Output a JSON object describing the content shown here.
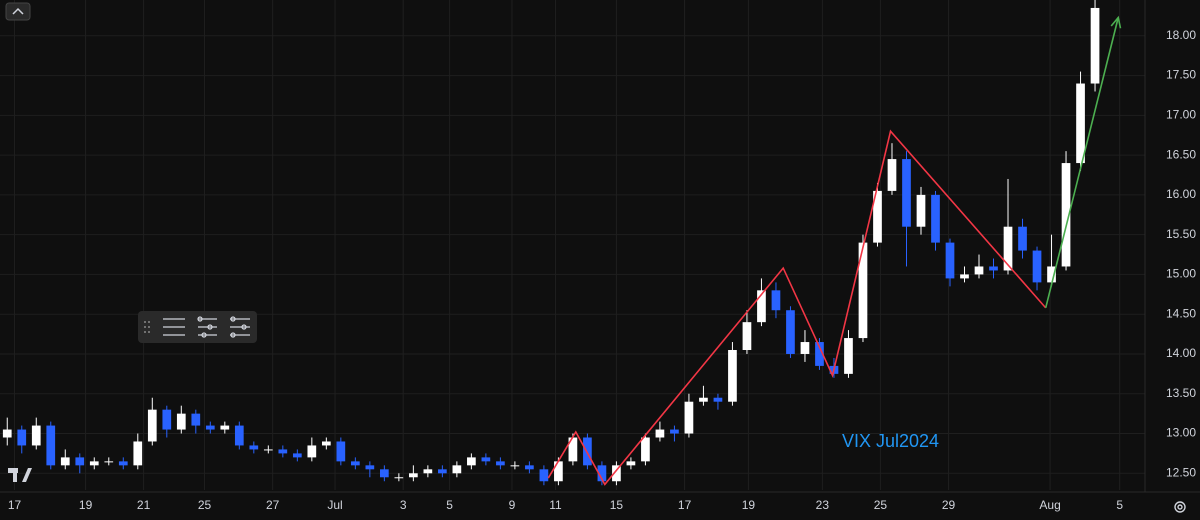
{
  "chart_data": {
    "type": "candlestick",
    "annotation": "VIX Jul2024",
    "up_color": "#ffffff",
    "down_color": "#2962ff",
    "grid": true,
    "xlim": [
      -0.5,
      78.1
    ],
    "xticks": [
      {
        "value": 0.5,
        "label": "17"
      },
      {
        "value": 5.4,
        "label": "19"
      },
      {
        "value": 9.4,
        "label": "21"
      },
      {
        "value": 13.6,
        "label": "25"
      },
      {
        "value": 18.3,
        "label": "27"
      },
      {
        "value": 22.6,
        "label": "Jul"
      },
      {
        "value": 27.3,
        "label": "3"
      },
      {
        "value": 30.5,
        "label": "5"
      },
      {
        "value": 34.8,
        "label": "9"
      },
      {
        "value": 37.8,
        "label": "11"
      },
      {
        "value": 42.0,
        "label": "15"
      },
      {
        "value": 46.7,
        "label": "17"
      },
      {
        "value": 51.1,
        "label": "19"
      },
      {
        "value": 56.2,
        "label": "23"
      },
      {
        "value": 60.2,
        "label": "25"
      },
      {
        "value": 64.9,
        "label": "29"
      },
      {
        "value": 71.9,
        "label": "Aug"
      },
      {
        "value": 76.7,
        "label": "5"
      }
    ],
    "ylim": [
      12.29,
      18.45
    ],
    "yticks": [
      {
        "value": 12.5,
        "label": "12.50"
      },
      {
        "value": 13,
        "label": "13.00"
      },
      {
        "value": 13.5,
        "label": "13.50"
      },
      {
        "value": 14,
        "label": "14.00"
      },
      {
        "value": 14.5,
        "label": "14.50"
      },
      {
        "value": 15,
        "label": "15.00"
      },
      {
        "value": 15.5,
        "label": "15.50"
      },
      {
        "value": 16,
        "label": "16.00"
      },
      {
        "value": 16.5,
        "label": "16.50"
      },
      {
        "value": 17,
        "label": "17.00"
      },
      {
        "value": 17.5,
        "label": "17.50"
      },
      {
        "value": 18,
        "label": "18.00"
      }
    ],
    "open": [
      12.95,
      13.05,
      12.85,
      13.1,
      12.6,
      12.7,
      12.6,
      12.65,
      12.65,
      12.6,
      12.9,
      13.3,
      13.05,
      13.25,
      13.1,
      13.05,
      13.1,
      12.85,
      12.8,
      12.8,
      12.75,
      12.7,
      12.85,
      12.9,
      12.65,
      12.6,
      12.55,
      12.45,
      12.45,
      12.5,
      12.55,
      12.5,
      12.6,
      12.7,
      12.65,
      12.6,
      12.6,
      12.55,
      12.4,
      12.65,
      12.95,
      12.6,
      12.4,
      12.6,
      12.65,
      12.95,
      13.05,
      13.0,
      13.4,
      13.45,
      13.4,
      14.05,
      14.4,
      14.8,
      14.55,
      14.0,
      14.15,
      13.85,
      13.75,
      14.2,
      15.4,
      16.05,
      16.45,
      15.6,
      16.0,
      15.4,
      14.95,
      15.0,
      15.1,
      15.05,
      15.6,
      15.3,
      14.9,
      15.1,
      16.4,
      17.4
    ],
    "high": [
      13.2,
      13.1,
      13.2,
      13.15,
      12.8,
      12.75,
      12.7,
      12.7,
      12.7,
      13.0,
      13.45,
      13.35,
      13.35,
      13.3,
      13.15,
      13.15,
      13.15,
      12.9,
      12.85,
      12.85,
      12.8,
      12.95,
      12.95,
      12.95,
      12.7,
      12.65,
      12.6,
      12.5,
      12.6,
      12.6,
      12.6,
      12.65,
      12.75,
      12.75,
      12.7,
      12.65,
      12.65,
      12.6,
      12.7,
      13.0,
      13.0,
      12.65,
      12.65,
      12.7,
      13.0,
      13.15,
      13.1,
      13.5,
      13.6,
      13.5,
      14.15,
      14.55,
      14.95,
      14.9,
      14.6,
      14.3,
      14.2,
      13.95,
      14.3,
      15.5,
      16.15,
      16.65,
      16.55,
      16.1,
      16.05,
      15.45,
      15.1,
      15.25,
      15.2,
      16.2,
      15.7,
      15.35,
      15.5,
      16.55,
      17.55,
      18.45
    ],
    "low": [
      12.85,
      12.75,
      12.8,
      12.55,
      12.55,
      12.5,
      12.55,
      12.6,
      12.55,
      12.55,
      12.85,
      12.95,
      13.0,
      13.0,
      13.0,
      13.0,
      12.8,
      12.75,
      12.75,
      12.7,
      12.65,
      12.65,
      12.8,
      12.6,
      12.55,
      12.45,
      12.4,
      12.4,
      12.4,
      12.45,
      12.45,
      12.45,
      12.55,
      12.6,
      12.55,
      12.55,
      12.5,
      12.35,
      12.35,
      12.6,
      12.55,
      12.35,
      12.35,
      12.55,
      12.6,
      12.9,
      12.9,
      12.95,
      13.35,
      13.3,
      13.35,
      14.0,
      14.35,
      14.45,
      13.95,
      13.9,
      13.8,
      13.7,
      13.7,
      14.15,
      15.35,
      16.0,
      15.1,
      15.5,
      15.3,
      14.85,
      14.9,
      14.95,
      14.95,
      15.0,
      15.2,
      14.8,
      14.85,
      15.05,
      16.3,
      17.3
    ],
    "close": [
      13.05,
      12.85,
      13.1,
      12.6,
      12.7,
      12.6,
      12.65,
      12.65,
      12.6,
      12.9,
      13.3,
      13.05,
      13.25,
      13.1,
      13.05,
      13.1,
      12.85,
      12.8,
      12.8,
      12.75,
      12.7,
      12.85,
      12.9,
      12.65,
      12.6,
      12.55,
      12.45,
      12.45,
      12.5,
      12.55,
      12.5,
      12.6,
      12.7,
      12.65,
      12.6,
      12.6,
      12.55,
      12.4,
      12.65,
      12.95,
      12.6,
      12.4,
      12.6,
      12.65,
      12.95,
      13.05,
      13.0,
      13.4,
      13.45,
      13.4,
      14.05,
      14.4,
      14.8,
      14.55,
      14.0,
      14.15,
      13.85,
      13.75,
      14.2,
      15.4,
      16.05,
      16.45,
      15.6,
      16.0,
      15.4,
      14.95,
      15.0,
      15.1,
      15.05,
      15.6,
      15.3,
      14.9,
      15.1,
      16.4,
      17.4,
      18.35
    ],
    "drawings": [
      {
        "color": "#f23645",
        "x": [
          37.3,
          39.2,
          41.2,
          53.5,
          56.9,
          60.9,
          71.6
        ],
        "y": [
          12.44,
          13.02,
          12.36,
          15.08,
          13.73,
          16.8,
          14.58
        ]
      },
      {
        "color": "#4caf50",
        "x": [
          71.6,
          76.6
        ],
        "y": [
          14.58,
          18.23
        ],
        "arrow": true
      }
    ]
  }
}
